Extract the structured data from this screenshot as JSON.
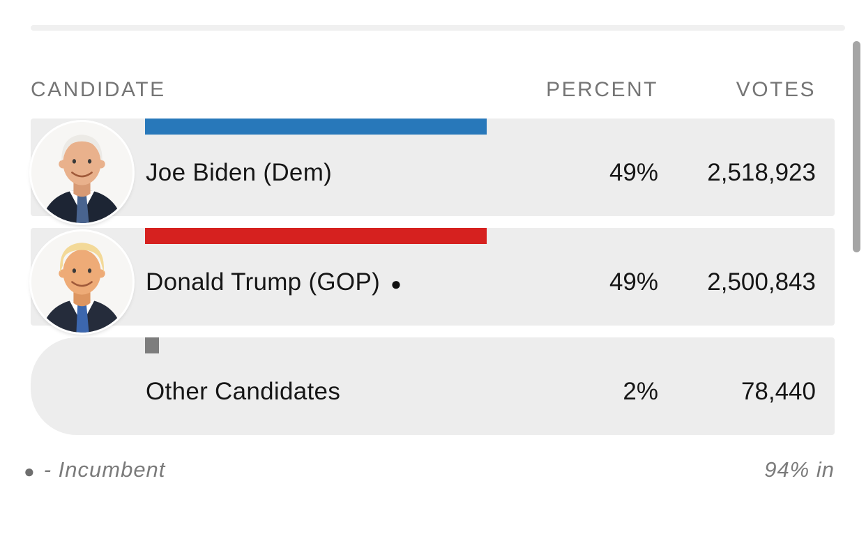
{
  "table": {
    "headers": {
      "candidate": "CANDIDATE",
      "percent": "PERCENT",
      "votes": "VOTES"
    },
    "rows": [
      {
        "name": "Joe Biden (Dem)",
        "percent": "49%",
        "percent_value": 49,
        "votes": "2,518,923",
        "party_color": "#2878ba",
        "photo": "joe-biden-portrait",
        "incumbent": false
      },
      {
        "name": "Donald Trump (GOP)",
        "percent": "49%",
        "percent_value": 49,
        "votes": "2,500,843",
        "party_color": "#d6211f",
        "photo": "donald-trump-portrait",
        "incumbent": true
      },
      {
        "name": "Other Candidates",
        "percent": "2%",
        "percent_value": 2,
        "votes": "78,440",
        "party_color": "#7d7d7d",
        "photo": null,
        "incumbent": false
      }
    ]
  },
  "footer": {
    "legend_bullet": "●",
    "legend_text": "- Incumbent",
    "reporting": "94% in"
  },
  "icons": {
    "incumbent_bullet": "●"
  },
  "colors": {
    "dem_blue": "#2878ba",
    "gop_red": "#d6211f",
    "other_gray": "#7d7d7d",
    "row_background": "#ededed",
    "header_text": "#757575",
    "footer_text": "#7b7b7b"
  },
  "chart_data": {
    "type": "table",
    "title": "Election results",
    "columns": [
      "CANDIDATE",
      "PERCENT",
      "VOTES"
    ],
    "rows": [
      [
        "Joe Biden (Dem)",
        "49%",
        "2,518,923"
      ],
      [
        "Donald Trump (GOP) ●",
        "49%",
        "2,500,843"
      ],
      [
        "Other Candidates",
        "2%",
        "78,440"
      ]
    ],
    "bar_values_percent": [
      49,
      49,
      2
    ],
    "bar_colors": [
      "#2878ba",
      "#d6211f",
      "#7d7d7d"
    ],
    "annotations": [
      "● - Incumbent",
      "94% in"
    ]
  }
}
